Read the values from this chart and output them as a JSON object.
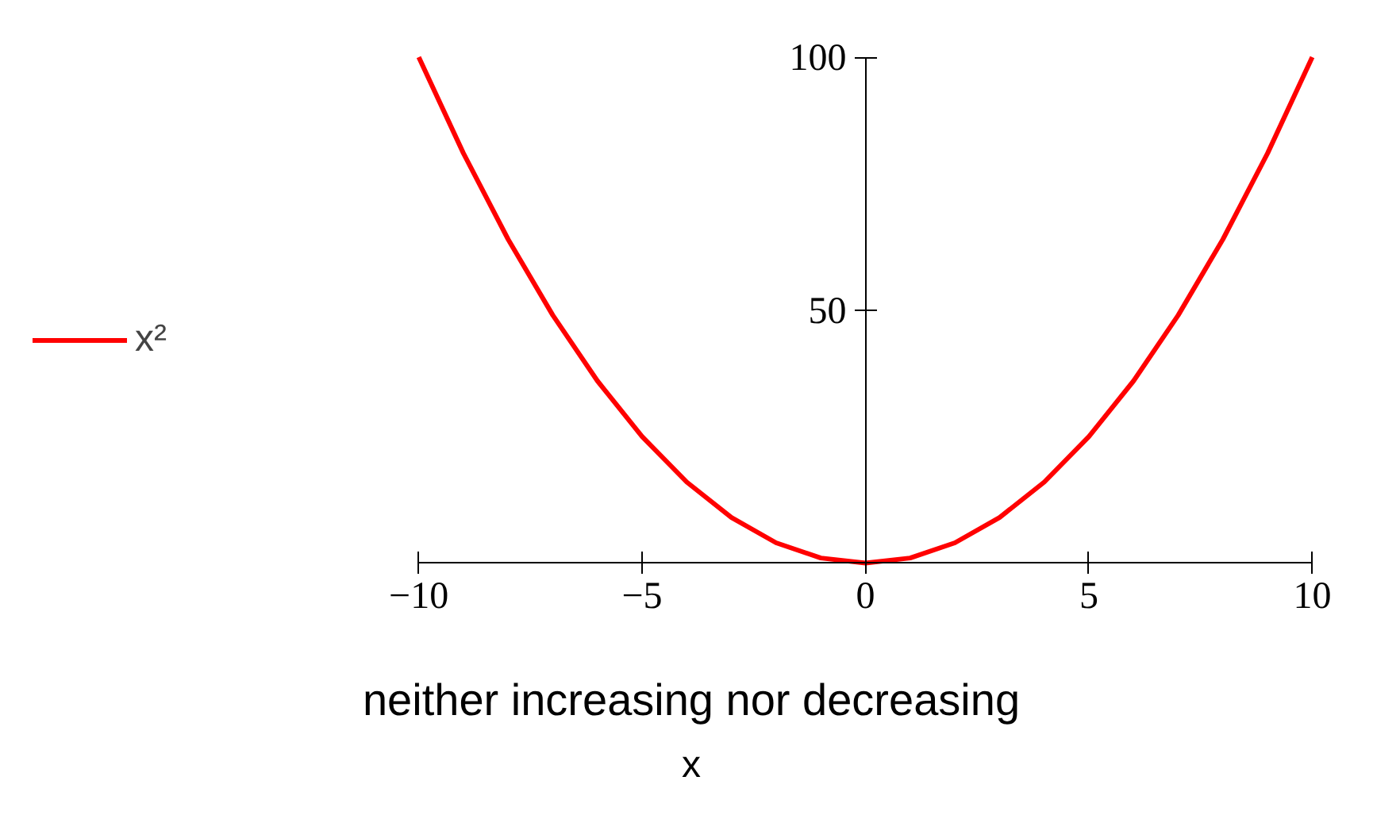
{
  "chart_data": {
    "type": "line",
    "xlabel": "x",
    "annotations": [
      "neither increasing nor decreasing"
    ],
    "x": [
      -10,
      -9,
      -8,
      -7,
      -6,
      -5,
      -4,
      -3,
      -2,
      -1,
      0,
      1,
      2,
      3,
      4,
      5,
      6,
      7,
      8,
      9,
      10
    ],
    "series": [
      {
        "name": "x²",
        "color": "#ff0000",
        "values": [
          100,
          81,
          64,
          49,
          36,
          25,
          16,
          9,
          4,
          1,
          0,
          1,
          4,
          9,
          16,
          25,
          36,
          49,
          64,
          81,
          100
        ]
      }
    ],
    "xlim": [
      -10,
      10
    ],
    "ylim": [
      0,
      100
    ],
    "xticks": [
      -10,
      -5,
      0,
      5,
      10
    ],
    "yticks": [
      50,
      100
    ],
    "legend": "left",
    "grid": false,
    "line_style": "solid"
  }
}
